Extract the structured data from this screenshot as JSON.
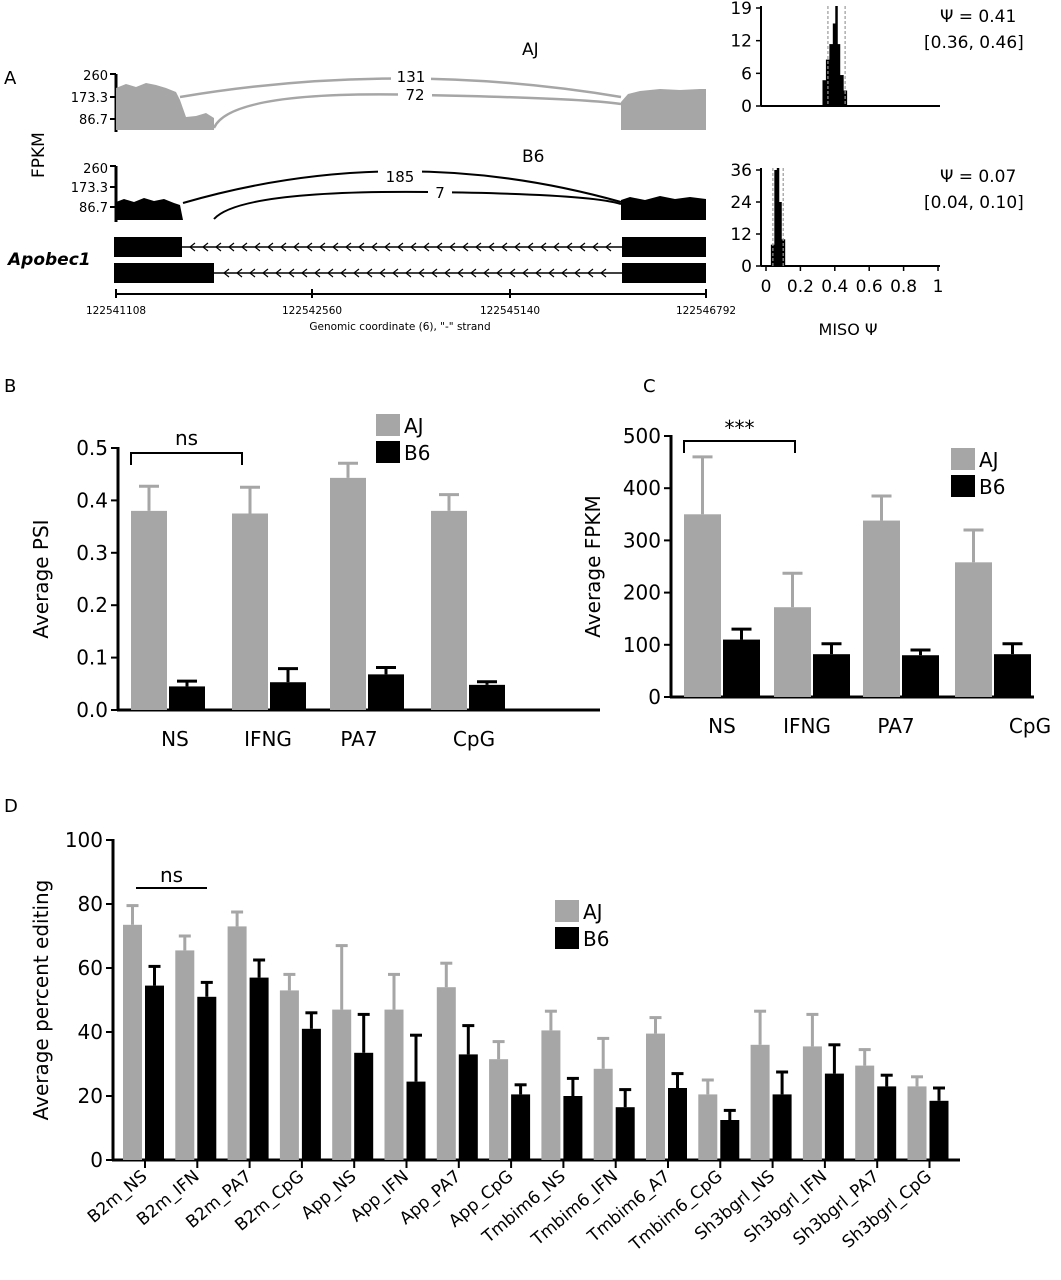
{
  "colors": {
    "aj": "#a6a6a6",
    "b6": "#000000",
    "grid_ci": "#999999"
  },
  "panel_a": {
    "label": "A",
    "y_axis_title": "FPKM",
    "gene": "Apobec1",
    "x_axis_title": "Genomic coordinate (6), \"-\" strand",
    "x_ticks": [
      "122541108",
      "122542560",
      "122545140",
      "122546792"
    ],
    "tracks": [
      {
        "name": "AJ",
        "y_ticks": [
          "260",
          "173.3",
          "86.7"
        ],
        "junction_counts": [
          "131",
          "72"
        ]
      },
      {
        "name": "B6",
        "y_ticks": [
          "260",
          "173.3",
          "86.7"
        ],
        "junction_counts": [
          "185",
          "7"
        ]
      }
    ],
    "miso": [
      {
        "psi_text": "Ψ = 0.41",
        "ci_text": "[0.36, 0.46]",
        "y_ticks": [
          "19",
          "12",
          "6",
          "0"
        ],
        "ymax": 19,
        "psi": 0.41,
        "ci": [
          0.36,
          0.46
        ],
        "bins": [
          {
            "x": 0.34,
            "y": 5
          },
          {
            "x": 0.36,
            "y": 9
          },
          {
            "x": 0.38,
            "y": 12
          },
          {
            "x": 0.4,
            "y": 16
          },
          {
            "x": 0.42,
            "y": 12
          },
          {
            "x": 0.44,
            "y": 6
          },
          {
            "x": 0.46,
            "y": 3
          }
        ]
      },
      {
        "psi_text": "Ψ = 0.07",
        "ci_text": "[0.04, 0.10]",
        "y_ticks": [
          "36",
          "24",
          "12",
          "0"
        ],
        "ymax": 36,
        "psi": 0.07,
        "ci": [
          0.04,
          0.1
        ],
        "bins": [
          {
            "x": 0.04,
            "y": 8
          },
          {
            "x": 0.06,
            "y": 36
          },
          {
            "x": 0.08,
            "y": 24
          },
          {
            "x": 0.1,
            "y": 10
          }
        ]
      }
    ],
    "miso_x_ticks": [
      "0",
      "0.2",
      "0.4",
      "0.6",
      "0.8",
      "1"
    ],
    "miso_x_title": "MISO Ψ"
  },
  "chart_data": [
    {
      "type": "bar",
      "panel": "B",
      "categories": [
        "NS",
        "IFNG",
        "PA7",
        "CpG"
      ],
      "series": [
        {
          "name": "AJ",
          "values": [
            0.38,
            0.375,
            0.443,
            0.38
          ],
          "errors": [
            0.047,
            0.05,
            0.028,
            0.031
          ]
        },
        {
          "name": "B6",
          "values": [
            0.045,
            0.053,
            0.068,
            0.048
          ],
          "errors": [
            0.01,
            0.026,
            0.013,
            0.006
          ]
        }
      ],
      "ylabel": "Average PSI",
      "ylim": [
        0,
        0.5
      ],
      "y_ticks": [
        "0.0",
        "0.1",
        "0.2",
        "0.3",
        "0.4",
        "0.5"
      ],
      "annotation": "ns",
      "legend": "top-right"
    },
    {
      "type": "bar",
      "panel": "C",
      "categories": [
        "NS",
        "IFNG",
        "PA7",
        "CpG"
      ],
      "series": [
        {
          "name": "AJ",
          "values": [
            350,
            172,
            338,
            258
          ],
          "errors": [
            110,
            65,
            47,
            62
          ]
        },
        {
          "name": "B6",
          "values": [
            110,
            82,
            80,
            82
          ],
          "errors": [
            20,
            20,
            10,
            20
          ]
        }
      ],
      "ylabel": "Average FPKM",
      "ylim": [
        0,
        500
      ],
      "y_ticks": [
        "0",
        "100",
        "200",
        "300",
        "400",
        "500"
      ],
      "annotation": "***",
      "legend": "top-right"
    },
    {
      "type": "bar",
      "panel": "D",
      "categories": [
        "B2m_NS",
        "B2m_IFN",
        "B2m_PA7",
        "B2m_CpG",
        "App_NS",
        "App_IFN",
        "App_PA7",
        "App_CpG",
        "Tmbim6_NS",
        "Tmbim6_IFN",
        "Tmbim6_A7",
        "Tmbim6_CpG",
        "Sh3bgrl_NS",
        "Sh3bgrl_IFN",
        "Sh3bgrl_PA7",
        "Sh3bgrl_CpG"
      ],
      "series": [
        {
          "name": "AJ",
          "values": [
            73.5,
            65.5,
            73,
            53,
            47,
            47,
            54,
            31.5,
            40.5,
            28.5,
            39.5,
            20.5,
            36,
            35.5,
            29.5,
            23
          ],
          "errors": [
            6,
            4.5,
            4.5,
            5,
            20,
            11,
            7.5,
            5.5,
            6,
            9.5,
            5,
            4.5,
            10.5,
            10,
            5,
            3
          ]
        },
        {
          "name": "B6",
          "values": [
            54.5,
            51,
            57,
            41,
            33.5,
            24.5,
            33,
            20.5,
            20,
            16.5,
            22.5,
            12.5,
            20.5,
            27,
            23,
            18.5
          ],
          "errors": [
            6,
            4.5,
            5.5,
            5,
            12,
            14.5,
            9,
            3,
            5.5,
            5.5,
            4.5,
            3,
            7,
            9,
            3.5,
            4
          ]
        }
      ],
      "ylabel": "Average percent editing",
      "ylim": [
        0,
        100
      ],
      "y_ticks": [
        "0",
        "20",
        "40",
        "60",
        "80",
        "100"
      ],
      "annotation": "ns",
      "legend": "center-right"
    }
  ]
}
